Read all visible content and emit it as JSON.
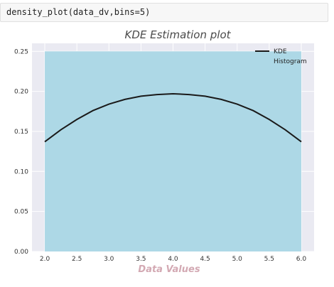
{
  "code_cell": {
    "source": "density_plot(data_dv,bins=5)"
  },
  "chart_data": {
    "type": "area",
    "title": "KDE Estimation plot",
    "xlabel": "Data Values",
    "ylabel": "",
    "xlim": [
      1.8,
      6.2
    ],
    "ylim": [
      0,
      0.26
    ],
    "xticks": [
      "2.0",
      "2.5",
      "3.0",
      "3.5",
      "4.0",
      "4.5",
      "5.0",
      "5.5",
      "6.0"
    ],
    "yticks": [
      "0.00",
      "0.05",
      "0.10",
      "0.15",
      "0.20",
      "0.25"
    ],
    "grid": true,
    "legend_position": "top-right",
    "series": [
      {
        "name": "Histogram",
        "kind": "histogram",
        "color": "#add8e6",
        "bins": [
          [
            2.0,
            6.0,
            0.25
          ]
        ]
      },
      {
        "name": "KDE",
        "kind": "line",
        "color": "#1a1a1a",
        "x": [
          2.0,
          2.25,
          2.5,
          2.75,
          3.0,
          3.25,
          3.5,
          3.75,
          4.0,
          4.25,
          4.5,
          4.75,
          5.0,
          5.25,
          5.5,
          5.75,
          6.0
        ],
        "y": [
          0.137,
          0.152,
          0.165,
          0.176,
          0.184,
          0.19,
          0.194,
          0.196,
          0.197,
          0.196,
          0.194,
          0.19,
          0.184,
          0.176,
          0.165,
          0.152,
          0.137
        ]
      }
    ],
    "legend": [
      "KDE",
      "Histogram"
    ],
    "colors": {
      "background": "#eaeaf2",
      "grid": "#ffffff",
      "bar": "#add8e6",
      "line": "#1a1a1a"
    }
  }
}
